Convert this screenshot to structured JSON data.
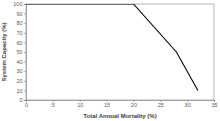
{
  "chart_data": {
    "type": "line",
    "x_label": "Total Annual Mortality (%)",
    "y_label": "System Capacity (%)",
    "x": [
      0,
      20,
      28,
      32
    ],
    "values": [
      100,
      100,
      50,
      10
    ],
    "color": "#000000",
    "xlim": [
      0,
      35
    ],
    "xticks": [
      0,
      5,
      10,
      15,
      20,
      25,
      30,
      35
    ],
    "ylim": [
      0,
      100
    ],
    "yticks": [
      0,
      10,
      20,
      30,
      40,
      50,
      60,
      70,
      80,
      90,
      100
    ],
    "grid": false
  }
}
